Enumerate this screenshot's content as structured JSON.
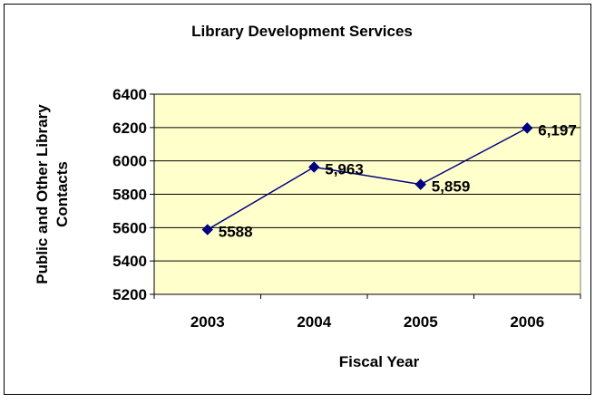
{
  "chart_data": {
    "type": "line",
    "title": "Library Development Services",
    "xlabel": "Fiscal Year",
    "ylabel": "Public and Other Library Contacts",
    "categories": [
      "2003",
      "2004",
      "2005",
      "2006"
    ],
    "series": [
      {
        "values": [
          5588,
          5963,
          5859,
          6197
        ],
        "labels": [
          "5588",
          "5,963",
          "5,859",
          "6,197"
        ]
      }
    ],
    "ylim": [
      5200,
      6400
    ],
    "yticks": [
      5200,
      5400,
      5600,
      5800,
      6000,
      6200,
      6400
    ],
    "grid": true,
    "legend": "none",
    "colors": {
      "line": "#000080",
      "marker": "#000080",
      "plot_background": "#FFFFCC",
      "gridline": "#000000",
      "border": "#000000"
    }
  }
}
